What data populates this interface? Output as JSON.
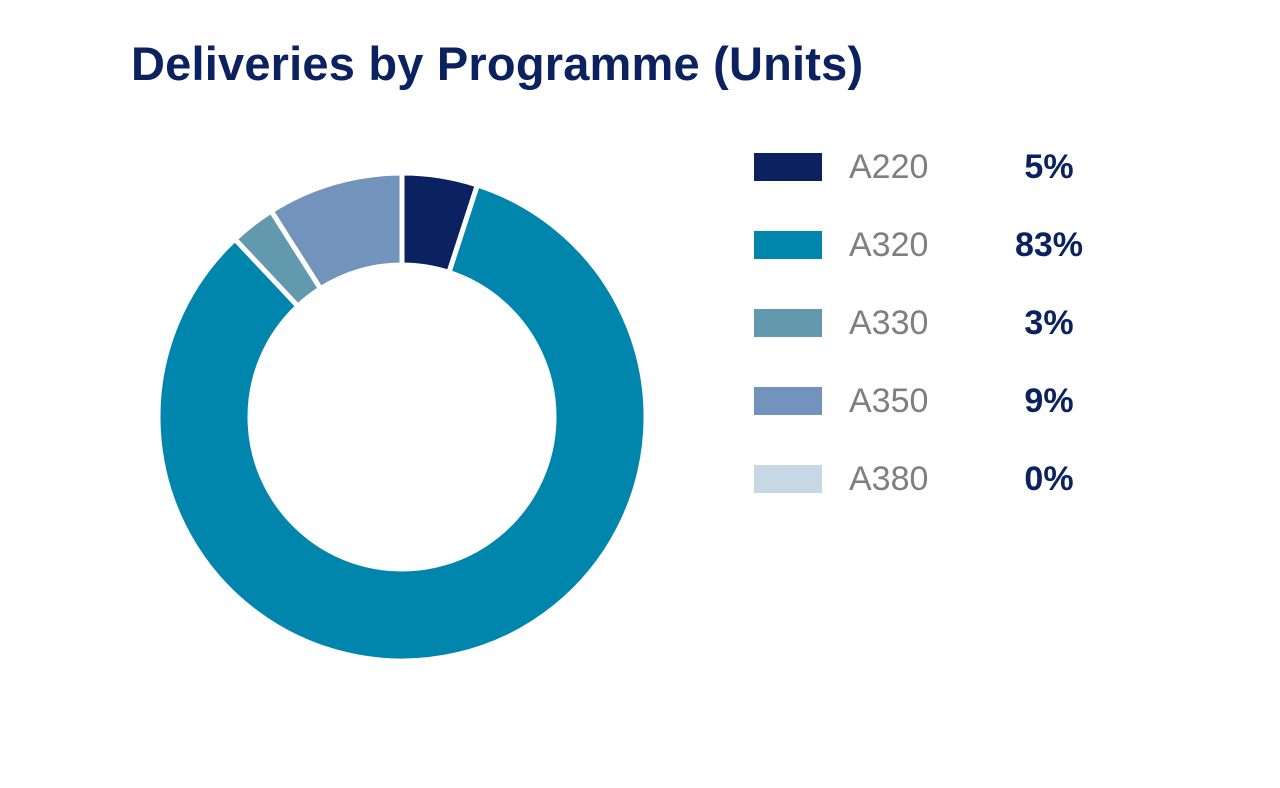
{
  "chart_data": {
    "type": "pie",
    "title": "Deliveries by Programme (Units)",
    "categories": [
      "A220",
      "A320",
      "A330",
      "A350",
      "A380"
    ],
    "values": [
      5,
      83,
      3,
      9,
      0
    ],
    "value_labels": [
      "5%",
      "83%",
      "3%",
      "9%",
      "0%"
    ],
    "colors": [
      "#0b2160",
      "#0086ad",
      "#6399ae",
      "#7293bc",
      "#c7d7e3"
    ],
    "donut": true,
    "legend_position": "right"
  }
}
